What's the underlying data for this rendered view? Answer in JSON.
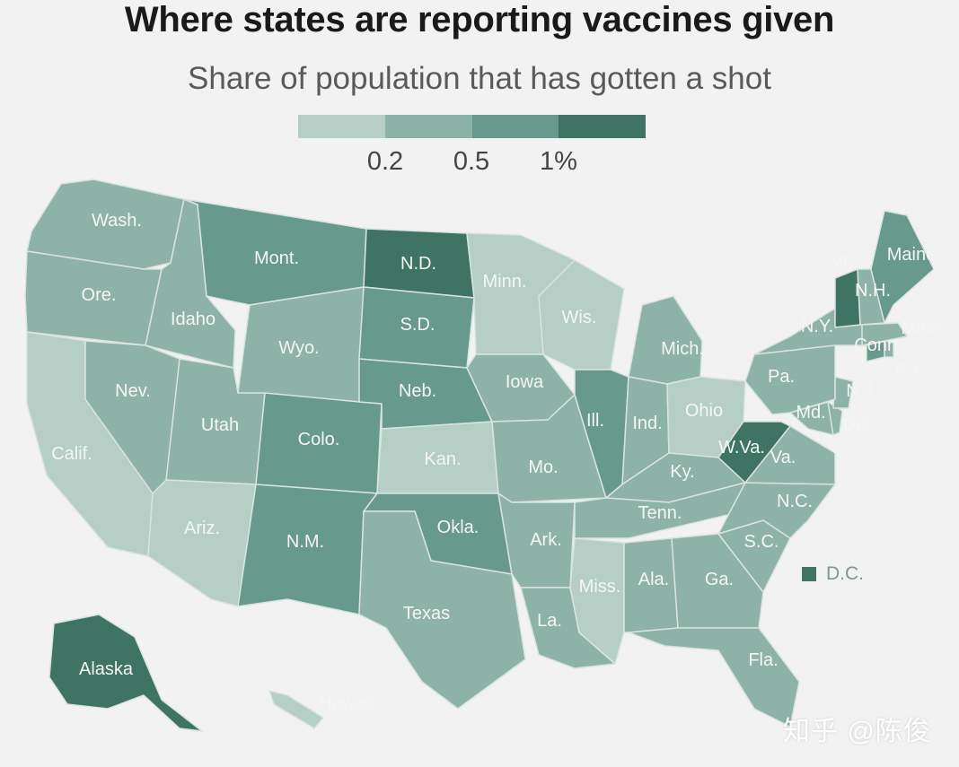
{
  "title": "Where states are reporting vaccines given",
  "subtitle": "Share of population that has gotten a shot",
  "legend": {
    "colors": [
      "#b5cfc7",
      "#8db3a8",
      "#67998c",
      "#3f7465"
    ],
    "labels": [
      "0.2",
      "0.5",
      "1%"
    ]
  },
  "chart_data": {
    "type": "choropleth",
    "title": "Where states are reporting vaccines given",
    "subtitle": "Share of population that has gotten a shot",
    "breaks": [
      0.2,
      0.5,
      1
    ],
    "break_labels": [
      "0.2",
      "0.5",
      "1%"
    ],
    "bins": [
      "<0.2",
      "0.2-0.5",
      "0.5-1",
      ">1"
    ],
    "states": [
      {
        "label": "Wash.",
        "bin": 1
      },
      {
        "label": "Ore.",
        "bin": 1
      },
      {
        "label": "Calif.",
        "bin": 0
      },
      {
        "label": "Idaho",
        "bin": 1
      },
      {
        "label": "Nev.",
        "bin": 1
      },
      {
        "label": "Mont.",
        "bin": 2
      },
      {
        "label": "Wyo.",
        "bin": 1
      },
      {
        "label": "Utah",
        "bin": 1
      },
      {
        "label": "Ariz.",
        "bin": 0
      },
      {
        "label": "Colo.",
        "bin": 2
      },
      {
        "label": "N.M.",
        "bin": 2
      },
      {
        "label": "N.D.",
        "bin": 3
      },
      {
        "label": "S.D.",
        "bin": 2
      },
      {
        "label": "Neb.",
        "bin": 2
      },
      {
        "label": "Kan.",
        "bin": 0
      },
      {
        "label": "Okla.",
        "bin": 2
      },
      {
        "label": "Texas",
        "bin": 1
      },
      {
        "label": "Minn.",
        "bin": 0
      },
      {
        "label": "Iowa",
        "bin": 1
      },
      {
        "label": "Mo.",
        "bin": 1
      },
      {
        "label": "Ark.",
        "bin": 1
      },
      {
        "label": "La.",
        "bin": 1
      },
      {
        "label": "Wis.",
        "bin": 0
      },
      {
        "label": "Ill.",
        "bin": 2
      },
      {
        "label": "Mich.",
        "bin": 1
      },
      {
        "label": "Ind.",
        "bin": 1
      },
      {
        "label": "Ohio",
        "bin": 0
      },
      {
        "label": "Ky.",
        "bin": 1
      },
      {
        "label": "Tenn.",
        "bin": 1
      },
      {
        "label": "Miss.",
        "bin": 0
      },
      {
        "label": "Ala.",
        "bin": 1
      },
      {
        "label": "Ga.",
        "bin": 1
      },
      {
        "label": "Fla.",
        "bin": 1
      },
      {
        "label": "S.C.",
        "bin": 1
      },
      {
        "label": "N.C.",
        "bin": 1
      },
      {
        "label": "Va.",
        "bin": 1
      },
      {
        "label": "W.Va.",
        "bin": 3
      },
      {
        "label": "Md.",
        "bin": 1
      },
      {
        "label": "Del.",
        "bin": 1
      },
      {
        "label": "N.J.",
        "bin": 1
      },
      {
        "label": "Pa.",
        "bin": 1
      },
      {
        "label": "N.Y.",
        "bin": 1
      },
      {
        "label": "Conn.",
        "bin": 2
      },
      {
        "label": "R.I.",
        "bin": 1
      },
      {
        "label": "Mass.",
        "bin": 1
      },
      {
        "label": "Vt.",
        "bin": 3
      },
      {
        "label": "N.H.",
        "bin": 1
      },
      {
        "label": "Maine",
        "bin": 2
      },
      {
        "label": "Alaska",
        "bin": 3
      },
      {
        "label": "Hawaii",
        "bin": 0
      },
      {
        "label": "D.C.",
        "bin": 2
      }
    ]
  },
  "annotations": {
    "dc_label": "D.C."
  },
  "watermark": "知乎 @陈俊"
}
